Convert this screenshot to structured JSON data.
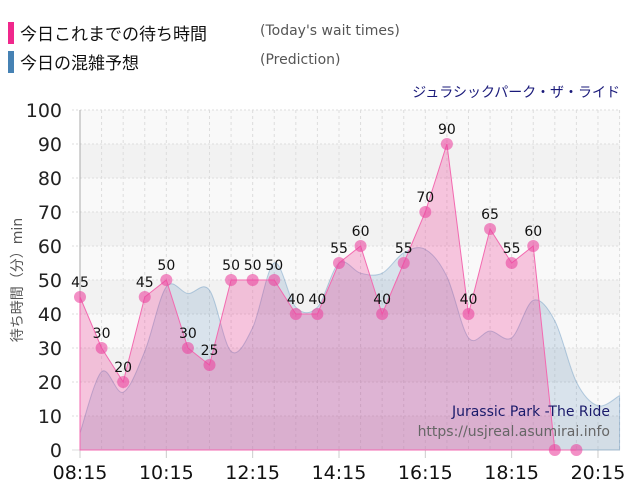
{
  "legend": [
    {
      "label": "今日これまでの待ち時間",
      "sub": "(Today's wait times)",
      "color": "#f0288c"
    },
    {
      "label": "今日の混雑予想",
      "sub": "(Prediction)",
      "color": "#4682b4"
    }
  ],
  "ride_title": "ジュラシックパーク・ザ・ライド",
  "watermark": {
    "name": "Jurassic Park -The Ride",
    "url": "https://usjreal.asumirai.info"
  },
  "chart_data": {
    "type": "area",
    "ylabel": "待ち時間（分）min",
    "ylim": [
      0,
      100
    ],
    "yticks": [
      0,
      10,
      20,
      30,
      40,
      50,
      60,
      70,
      80,
      90,
      100
    ],
    "xticks": [
      "08:15",
      "10:15",
      "12:15",
      "14:15",
      "16:15",
      "18:15",
      "20:15"
    ],
    "grid": true,
    "series": [
      {
        "name": "今日これまでの待ち時間",
        "color": "#f0288c",
        "x": [
          "08:15",
          "08:45",
          "09:15",
          "09:45",
          "10:15",
          "10:45",
          "11:15",
          "11:45",
          "12:15",
          "12:45",
          "13:15",
          "13:45",
          "14:15",
          "14:45",
          "15:15",
          "15:45",
          "16:15",
          "16:45",
          "17:15",
          "17:45",
          "18:15",
          "18:45",
          "19:15",
          "19:45"
        ],
        "values": [
          45,
          30,
          20,
          45,
          50,
          30,
          25,
          50,
          50,
          50,
          40,
          40,
          55,
          60,
          40,
          55,
          70,
          90,
          40,
          65,
          55,
          60,
          0,
          0
        ]
      },
      {
        "name": "今日の混雑予想",
        "color": "#4682b4",
        "x": [
          "08:15",
          "08:45",
          "09:15",
          "09:45",
          "10:15",
          "10:45",
          "11:15",
          "11:45",
          "12:15",
          "12:45",
          "13:15",
          "13:45",
          "14:15",
          "14:45",
          "15:15",
          "15:45",
          "16:15",
          "16:45",
          "17:15",
          "17:45",
          "18:15",
          "18:45",
          "19:15",
          "19:45",
          "20:15",
          "20:45"
        ],
        "values": [
          5,
          23,
          17,
          29,
          48,
          46,
          47,
          29,
          36,
          55,
          42,
          42,
          55,
          52,
          52,
          58,
          59,
          51,
          33,
          35,
          33,
          44,
          38,
          20,
          13,
          16
        ]
      }
    ]
  }
}
